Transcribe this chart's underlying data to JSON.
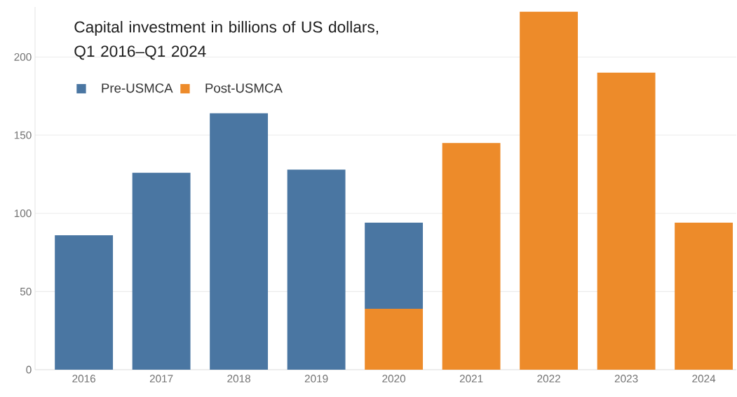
{
  "chart_data": {
    "type": "bar",
    "title": "Capital investment in billions of US dollars, Q1 2016–Q1 2024",
    "categories": [
      "2016",
      "2017",
      "2018",
      "2019",
      "2020",
      "2021",
      "2022",
      "2023",
      "2024"
    ],
    "stacked": true,
    "series": [
      {
        "name": "Post-USMCA",
        "color": "#ed8b2a",
        "values": [
          null,
          null,
          null,
          null,
          39,
          145,
          229,
          190,
          94
        ]
      },
      {
        "name": "Pre-USMCA",
        "color": "#4a76a2",
        "values": [
          86,
          126,
          164,
          128,
          55,
          null,
          null,
          null,
          null
        ]
      }
    ],
    "ylim": [
      0,
      232
    ],
    "yticks": [
      0,
      50,
      100,
      150,
      200
    ],
    "grid": "y",
    "legend": "top left"
  }
}
